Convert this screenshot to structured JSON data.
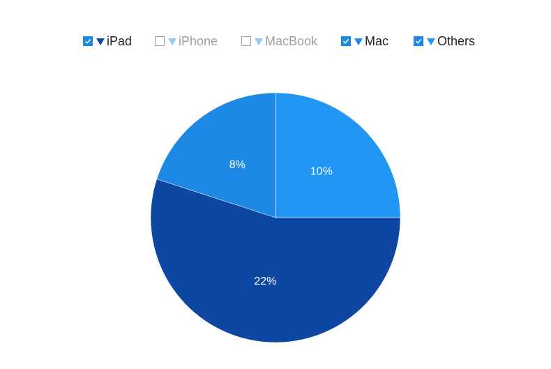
{
  "chart_data": {
    "type": "pie",
    "title": "",
    "legend_position": "top",
    "series": [
      {
        "name": "iPad",
        "value": 22,
        "label": "22%",
        "visible": true,
        "color": "#0d47a1",
        "legend_marker_color": "#0d47a1"
      },
      {
        "name": "iPhone",
        "value": null,
        "label": "",
        "visible": false,
        "color": "#90caf9",
        "legend_marker_color": "#90caf9"
      },
      {
        "name": "MacBook",
        "value": null,
        "label": "",
        "visible": false,
        "color": "#90caf9",
        "legend_marker_color": "#90caf9"
      },
      {
        "name": "Mac",
        "value": 8,
        "label": "8%",
        "visible": true,
        "color": "#1e88e5",
        "legend_marker_color": "#1e88e5"
      },
      {
        "name": "Others",
        "value": 10,
        "label": "10%",
        "visible": true,
        "color": "#2196f3",
        "legend_marker_color": "#2196f3"
      }
    ]
  },
  "legend": {
    "items": [
      {
        "label": "iPad",
        "checked": true
      },
      {
        "label": "iPhone",
        "checked": false
      },
      {
        "label": "MacBook",
        "checked": false
      },
      {
        "label": "Mac",
        "checked": true
      },
      {
        "label": "Others",
        "checked": true
      }
    ]
  },
  "colors": {
    "checkbox_checked": "#1e88e5",
    "checkbox_unchecked_border": "#9e9e9e",
    "label_active": "#222222",
    "label_inactive": "#9e9e9e",
    "slice_label": "#ffffff"
  }
}
